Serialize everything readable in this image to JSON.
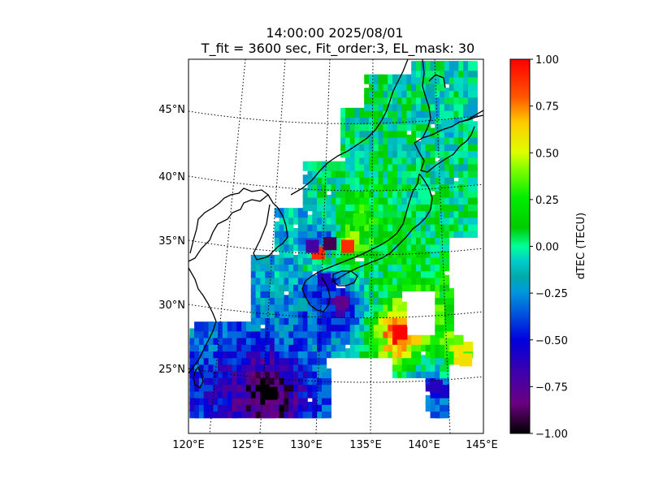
{
  "chart_data": {
    "type": "heatmap",
    "title_line1": "14:00:00 2025/08/01",
    "title_line2": "T_fit = 3600 sec, Fit_order:3, EL_mask: 30",
    "projection": "conic map of Japan region with dotted graticule",
    "lon_range": [
      120,
      145
    ],
    "lat_range": [
      20,
      48
    ],
    "x_ticks": [
      "120°E",
      "125°E",
      "130°E",
      "135°E",
      "140°E",
      "145°E"
    ],
    "y_ticks": [
      "25°N",
      "30°N",
      "35°N",
      "40°N",
      "45°N"
    ],
    "colorbar": {
      "label": "dTEC (TECU)",
      "min": -1.0,
      "max": 1.0,
      "colormap": "nipy_spectral",
      "ticks": [
        "1.00",
        "0.75",
        "0.50",
        "0.25",
        "0.00",
        "−0.25",
        "−0.50",
        "−0.75",
        "−1.00"
      ],
      "colors": [
        "#000000",
        "#7a0090",
        "#0000dd",
        "#0077dd",
        "#00aaaa",
        "#00ffcc",
        "#00cc00",
        "#00ff00",
        "#ccff00",
        "#ffcc00",
        "#ff3300",
        "#ff0000"
      ]
    },
    "notable_points": [
      {
        "lon": 133.5,
        "lat": 34.0,
        "value": 0.9
      },
      {
        "lon": 131.0,
        "lat": 33.5,
        "value": 0.9
      },
      {
        "lon": 132.0,
        "lat": 34.2,
        "value": -0.9
      },
      {
        "lon": 130.5,
        "lat": 34.0,
        "value": -0.7
      },
      {
        "lon": 131.5,
        "lat": 31.5,
        "value": -0.6
      },
      {
        "lon": 133.0,
        "lat": 29.8,
        "value": -0.8
      },
      {
        "lon": 127.0,
        "lat": 23.0,
        "value": -1.0
      },
      {
        "lon": 138.0,
        "lat": 27.5,
        "value": 1.0
      },
      {
        "lon": 141.0,
        "lat": 23.5,
        "value": -0.6
      },
      {
        "lon": 143.5,
        "lat": 25.5,
        "value": 0.6
      },
      {
        "lon": 134.5,
        "lat": 36.0,
        "value": 0.3
      },
      {
        "lon": 140.0,
        "lat": 38.0,
        "value": 0.0
      },
      {
        "lon": 142.0,
        "lat": 43.0,
        "value": -0.1
      }
    ],
    "grid": true
  }
}
